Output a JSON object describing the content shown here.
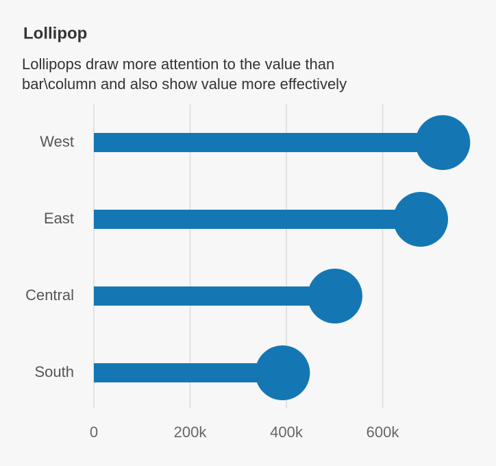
{
  "chart_data": {
    "type": "lollipop",
    "title": "Lollipop",
    "subtitle": [
      "Lollipops draw more attention to the value than",
      "bar\\column and also show value more effectively"
    ],
    "categories": [
      "West",
      "East",
      "Central",
      "South"
    ],
    "values": [
      725000,
      679000,
      501000,
      392000
    ],
    "color": "#1477b3",
    "xlim": [
      0,
      800000
    ],
    "xticks": [
      0,
      {
        "value": 200000,
        "label": "200k"
      },
      {
        "value": 400000,
        "label": "400k"
      },
      {
        "value": 600000,
        "label": "600k"
      }
    ],
    "grid": true
  }
}
